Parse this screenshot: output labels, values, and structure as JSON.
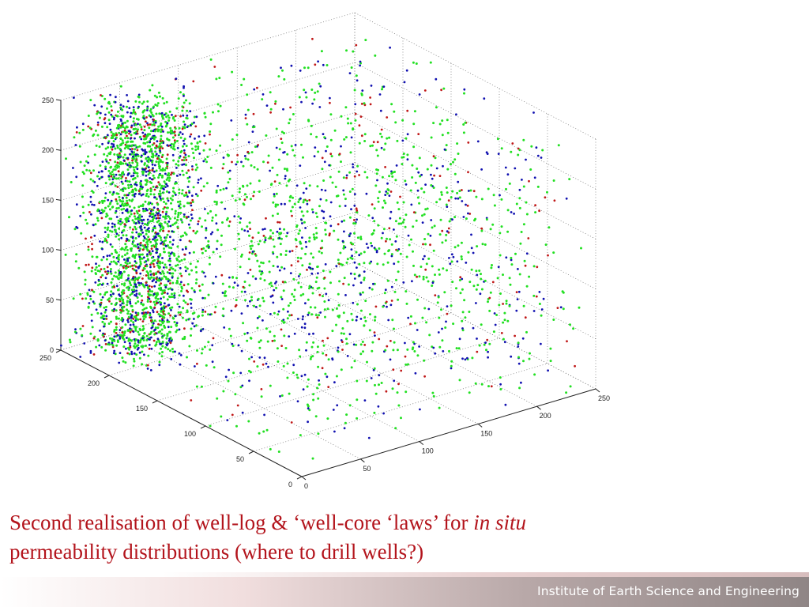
{
  "chart_data": {
    "type": "scatter3d",
    "title": "",
    "xlabel": "",
    "ylabel": "",
    "zlabel": "",
    "x_range": [
      0,
      250
    ],
    "y_range": [
      0,
      250
    ],
    "z_range": [
      0,
      250
    ],
    "x_ticks": [
      "0",
      "50",
      "100",
      "150",
      "200",
      "250"
    ],
    "y_ticks": [
      "0",
      "50",
      "100",
      "150",
      "200",
      "250"
    ],
    "z_ticks": [
      "0",
      "50",
      "100",
      "150",
      "200",
      "250"
    ],
    "grid": true,
    "legend": "none",
    "series_colors": [
      "#22e022",
      "#1010b0",
      "#c01818"
    ],
    "approx_point_count": 4000
  },
  "caption": {
    "line1": "Second realisation of well-log & ‘well-core ‘laws’ for ",
    "line1_italic": "in situ",
    "line2": "permeability distributions (where to drill wells?)"
  },
  "footer": {
    "institute": "Institute of Earth Science and Engineering"
  }
}
